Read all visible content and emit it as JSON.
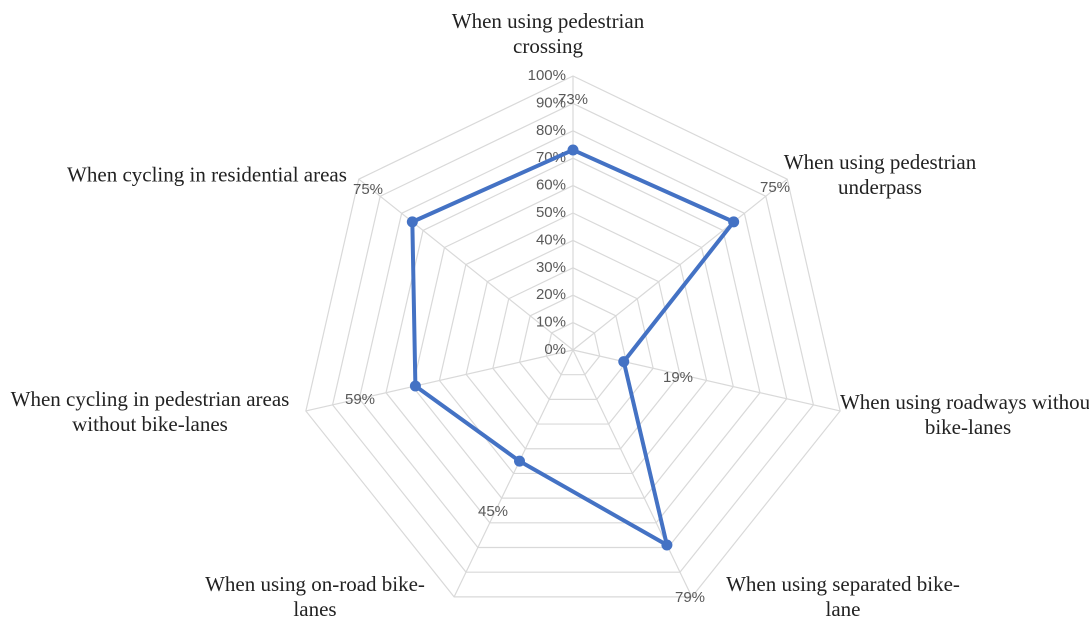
{
  "chart_data": {
    "type": "radar",
    "categories": [
      "When using pedestrian crossing",
      "When using pedestrian underpass",
      "When using roadways without bike-lanes",
      "When using separated bike-lane",
      "When using on-road bike-lanes",
      "When cycling in pedestrian areas without bike-lanes",
      "When cycling in residential areas"
    ],
    "values": [
      73,
      75,
      19,
      79,
      45,
      59,
      75
    ],
    "value_labels": [
      "73%",
      "75%",
      "19%",
      "79%",
      "45%",
      "59%",
      "75%"
    ],
    "color": "#4472c4",
    "ylim": [
      0,
      100
    ],
    "yticks": [
      {
        "value": 0,
        "label": "0%"
      },
      {
        "value": 10,
        "label": "10%"
      },
      {
        "value": 20,
        "label": "20%"
      },
      {
        "value": 30,
        "label": "30%"
      },
      {
        "value": 40,
        "label": "40%"
      },
      {
        "value": 50,
        "label": "50%"
      },
      {
        "value": 60,
        "label": "60%"
      },
      {
        "value": 70,
        "label": "70%"
      },
      {
        "value": 80,
        "label": "80%"
      },
      {
        "value": 90,
        "label": "90%"
      },
      {
        "value": 100,
        "label": "100%"
      }
    ],
    "grid": true
  }
}
